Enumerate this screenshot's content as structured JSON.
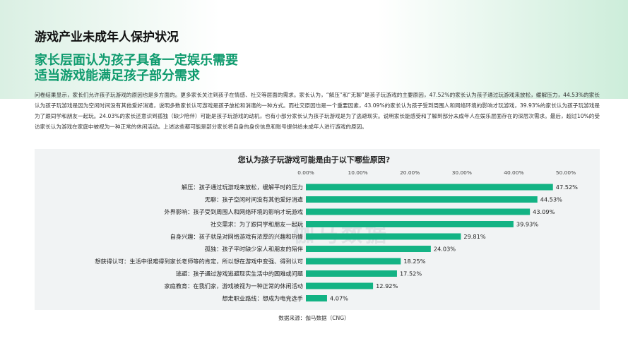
{
  "header": {
    "title": "游戏产业未成年人保护状况"
  },
  "headline": {
    "line1": "家长层面认为孩子具备一定娱乐需要",
    "line2": "适当游戏能满足孩子部分需求"
  },
  "body_text": "问卷结果显示，家长们允许孩子玩游戏的原因也是多方面的。更多家长关注到孩子在情感、社交等层面的需求。家长认为，“解压”和“无聊”是孩子玩游戏的主要原因，47.52%的家长认为孩子通过玩游戏来放松，缓解压力，44.53%的家长认为孩子玩游戏是因为空闲时间没有其他爱好消遣，说明多数家长认可游戏是孩子放松和消遣的一种方式。而社交原因也是一个重要因素，43.09%的家长认为孩子受到周围人和网络环境的影响才玩游戏，39.93%的家长认为孩子玩游戏是为了跟同学和朋友一起玩。24.03%的家长还意识到孤独（缺少陪伴）可能是孩子玩游戏的动机，也有小部分家长认为孩子玩游戏是为了逃避现实。说明家长能感受和了解到部分未成年人在娱乐层面存在的深层次需求。最后，超过10%的受访家长认为游戏在家庭中被视为一种正常的休闲活动。上述这些都可能是部分家长将自身的身份信息和账号提供给未成年人进行游戏的原因。",
  "watermark": "伽马数据",
  "source": "数据来源：伽马数据（CNG）",
  "colors": {
    "accent": "#0f9b6e",
    "bar": "#13b384",
    "panel": "#f1f3f4"
  },
  "chart_data": {
    "type": "bar",
    "orientation": "horizontal",
    "title": "您认为孩子玩游戏可能是由于以下哪些原因?",
    "xlim": [
      0,
      50
    ],
    "x_ticks": [
      "0.00%",
      "10.00%",
      "20.00%",
      "30.00%",
      "40.00%",
      "50.00%"
    ],
    "x_tick_values": [
      0,
      10,
      20,
      30,
      40,
      50
    ],
    "x_axis_position": "top",
    "grid": false,
    "categories": [
      "解压：孩子通过玩游戏来放松，缓解平时的压力",
      "无聊：孩子空闲时间没有其他爱好消遣",
      "外界影响：孩子受到周围人和网络环境的影响才玩游戏",
      "社交需求：为了跟同学和朋友一起玩",
      "自身兴趣：孩子就是对网络游戏有浓厚的兴趣和热情",
      "孤独：孩子平时缺少家人和朋友的陪伴",
      "想获得认可：生活中很难得到家长老师等的肯定，所以想在游戏中变强、得到认可",
      "逃避：孩子通过游戏逃避现实生活中的困难或问题",
      "家庭教育：在我们家，游戏被视为一种正常的休闲活动",
      "想走职业路线：想成为电竞选手"
    ],
    "values": [
      47.52,
      44.53,
      43.09,
      39.93,
      29.81,
      24.03,
      18.25,
      17.52,
      12.92,
      4.07
    ],
    "value_labels": [
      "47.52%",
      "44.53%",
      "43.09%",
      "39.93%",
      "29.81%",
      "24.03%",
      "18.25%",
      "17.52%",
      "12.92%",
      "4.07%"
    ]
  }
}
